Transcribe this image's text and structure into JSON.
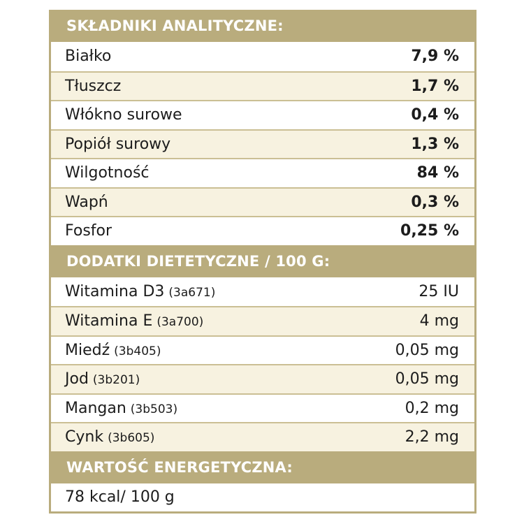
{
  "analytic": {
    "header": "SKŁADNIKI ANALITYCZNE:",
    "rows": [
      {
        "label": "Białko",
        "value": "7,9 %"
      },
      {
        "label": "Tłuszcz",
        "value": "1,7 %"
      },
      {
        "label": "Włókno surowe",
        "value": "0,4 %"
      },
      {
        "label": "Popiół surowy",
        "value": "1,3 %"
      },
      {
        "label": "Wilgotność",
        "value": "84 %"
      },
      {
        "label": "Wapń",
        "value": "0,3 %"
      },
      {
        "label": "Fosfor",
        "value": "0,25 %"
      }
    ]
  },
  "additives": {
    "header": "DODATKI DIETETYCZNE / 100 G:",
    "rows": [
      {
        "label": "Witamina D3",
        "code": "(3a671)",
        "value": "25 IU"
      },
      {
        "label": "Witamina E",
        "code": "(3a700)",
        "value": "4 mg"
      },
      {
        "label": "Miedź",
        "code": "(3b405)",
        "value": "0,05 mg"
      },
      {
        "label": "Jod",
        "code": "(3b201)",
        "value": "0,05 mg"
      },
      {
        "label": "Mangan",
        "code": "(3b503)",
        "value": "0,2 mg"
      },
      {
        "label": "Cynk",
        "code": "(3b605)",
        "value": "2,2 mg"
      }
    ]
  },
  "energy": {
    "header": "WARTOŚĆ ENERGETYCZNA:",
    "value": "78 kcal/ 100 g"
  },
  "colors": {
    "header_bg": "#b9ac7d",
    "stripe_bg": "#f7f2e0"
  }
}
